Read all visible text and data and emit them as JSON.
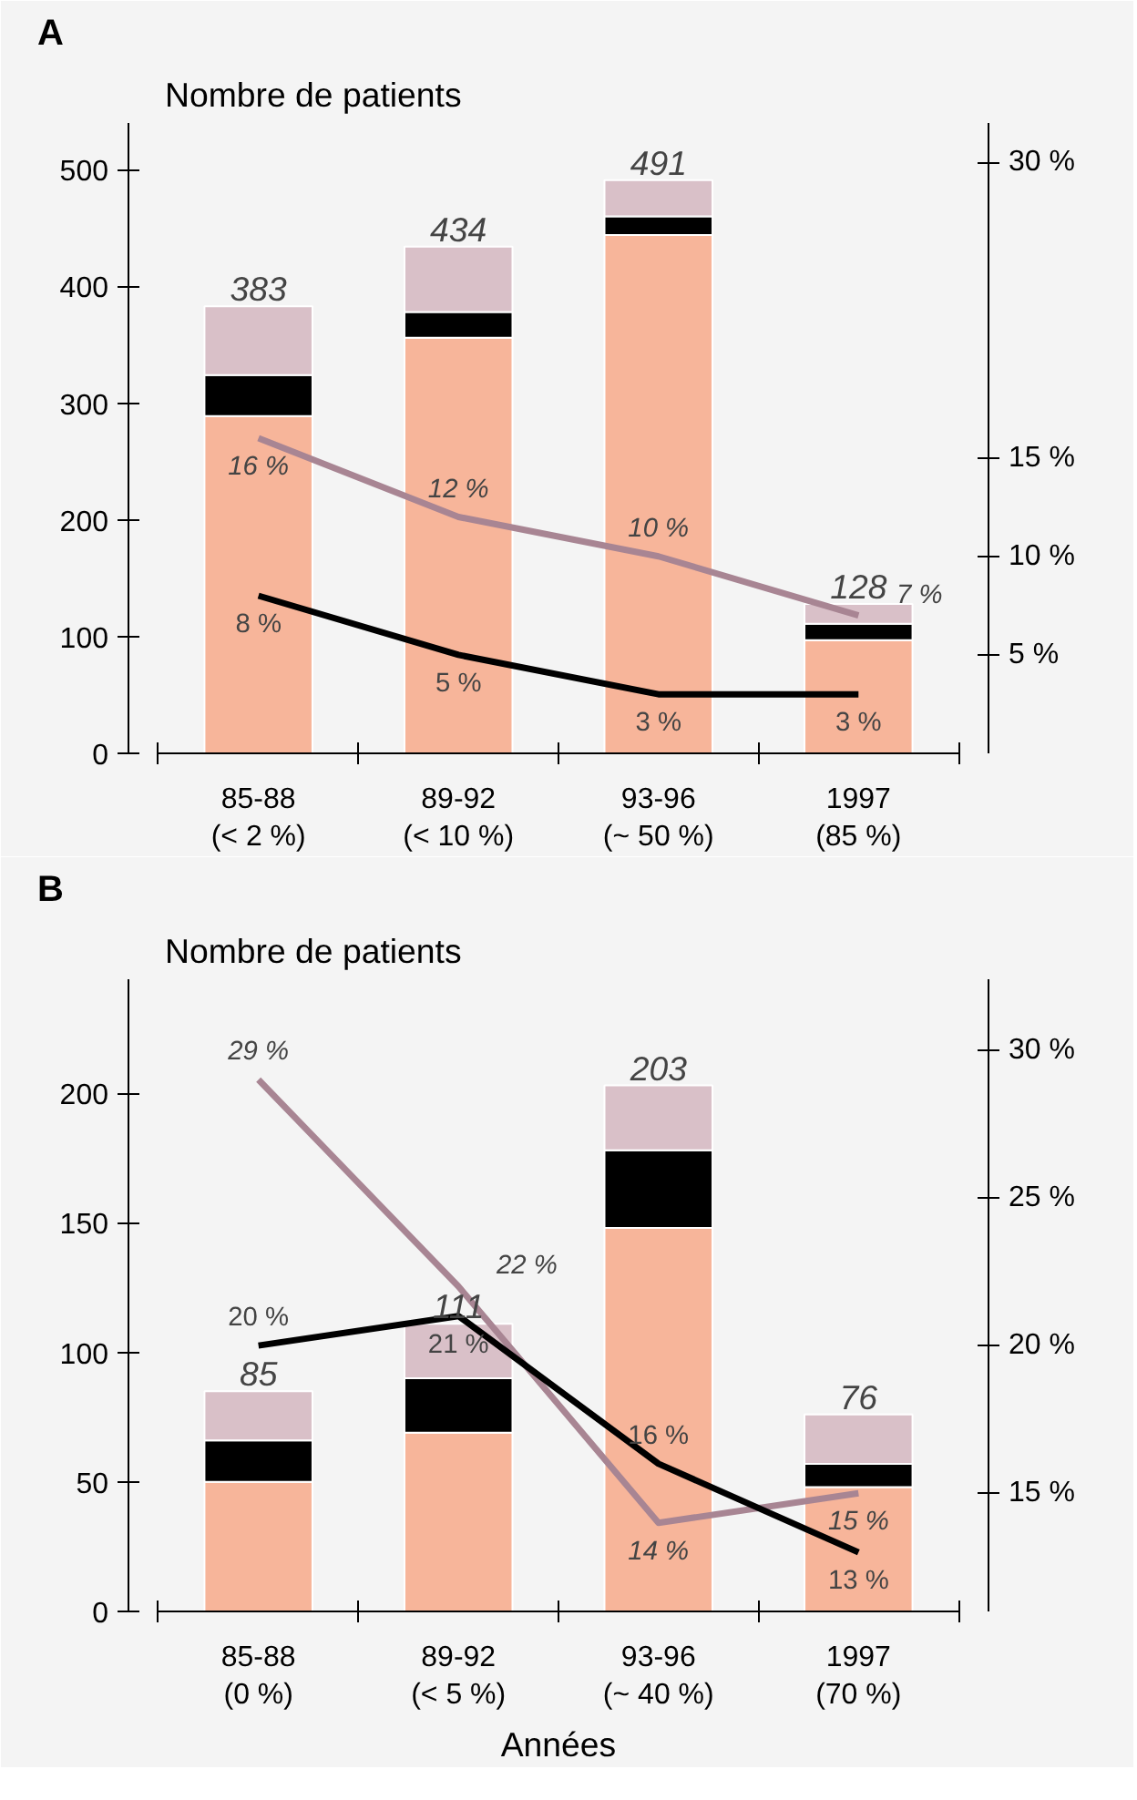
{
  "chart_data": [
    {
      "type": "bar",
      "stacked": true,
      "title": "A",
      "ylabel": "Nombre de patients",
      "categories": [
        "85-88\n(< 2 %)",
        "89-92\n(< 10 %)",
        "93-96\n(~ 50 %)",
        "1997\n(85 %)"
      ],
      "ylim": [
        0,
        540
      ],
      "yticks": [
        0,
        100,
        200,
        300,
        400,
        500
      ],
      "y2lim": [
        0,
        32
      ],
      "y2ticks": [
        {
          "value": 5,
          "label": "5 %"
        },
        {
          "value": 10,
          "label": "10 %"
        },
        {
          "value": 15,
          "label": "15 %"
        },
        {
          "value": 30,
          "label": "30 %"
        }
      ],
      "totals": [
        "383",
        "434",
        "491",
        "128"
      ],
      "series": [
        {
          "color": "#f7b59a",
          "values": [
            289,
            356,
            444,
            97
          ]
        },
        {
          "color": "#000000",
          "values": [
            35,
            22,
            16,
            14
          ]
        },
        {
          "color": "#d9c0c8",
          "values": [
            59,
            56,
            31,
            17
          ]
        },
        {
          "type": "line",
          "axis": "y2",
          "color": "#a88593",
          "values": [
            16,
            12,
            10,
            7
          ],
          "value_labels": [
            "16 %",
            "12 %",
            "10 %",
            "7 %"
          ]
        },
        {
          "type": "line",
          "axis": "y2",
          "color": "#000000",
          "values": [
            8,
            5,
            3,
            3
          ],
          "value_labels": [
            "8 %",
            "5 %",
            "3 %",
            "3 %"
          ]
        }
      ]
    },
    {
      "type": "bar",
      "stacked": true,
      "title": "B",
      "ylabel": "Nombre de patients",
      "xlabel": "Années",
      "categories": [
        "85-88\n(0 %)",
        "89-92\n(< 5 %)",
        "93-96\n(~ 40 %)",
        "1997\n(70 %)"
      ],
      "ylim": [
        0,
        244
      ],
      "yticks": [
        0,
        50,
        100,
        150,
        200
      ],
      "y2lim": [
        11,
        32.4
      ],
      "y2ticks": [
        {
          "value": 15,
          "label": "15 %"
        },
        {
          "value": 20,
          "label": "20 %"
        },
        {
          "value": 25,
          "label": "25 %"
        },
        {
          "value": 30,
          "label": "30 %"
        }
      ],
      "totals": [
        "85",
        "111",
        "203",
        "76"
      ],
      "series": [
        {
          "color": "#f7b59a",
          "values": [
            50,
            69,
            148,
            48
          ]
        },
        {
          "color": "#000000",
          "values": [
            16,
            21,
            30,
            9
          ]
        },
        {
          "color": "#d9c0c8",
          "values": [
            19,
            21,
            25,
            19
          ]
        },
        {
          "type": "line",
          "axis": "y2",
          "color": "#a88593",
          "values": [
            29,
            22,
            14,
            15
          ],
          "value_labels": [
            "29 %",
            "22 %",
            "14 %",
            "15 %"
          ]
        },
        {
          "type": "line",
          "axis": "y2",
          "color": "#000000",
          "values": [
            20,
            21,
            16,
            13
          ],
          "value_labels": [
            "20 %",
            "21 %",
            "16 %",
            "13 %"
          ]
        }
      ]
    }
  ]
}
